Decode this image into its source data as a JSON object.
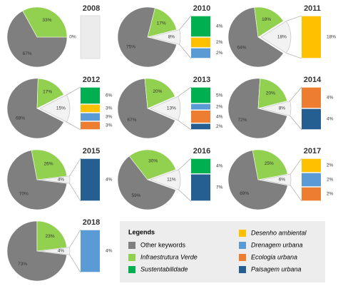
{
  "legend": {
    "title": "Legends",
    "items": [
      {
        "name": "Other keywords",
        "color": "#7f7f7f"
      },
      {
        "name": "Infraestrutura Verde",
        "color": "#92d050"
      },
      {
        "name": "Sustentabilidade",
        "color": "#00b050"
      },
      {
        "name": "Desenho ambiental",
        "color": "#ffc000"
      },
      {
        "name": "Drenagem urbana",
        "color": "#5b9bd5"
      },
      {
        "name": "Ecologia urbana",
        "color": "#ed7d31"
      },
      {
        "name": "Paisagem urbana",
        "color": "#255e91"
      }
    ]
  },
  "chart_data": [
    {
      "type": "pie-of-bar",
      "title": "2008",
      "pie": {
        "categories": [
          "Other keywords",
          "Infraestrutura Verde",
          null
        ],
        "values": [
          67,
          33,
          0
        ],
        "value_labels": [
          "67%",
          "33%",
          "0%"
        ]
      },
      "bar": {
        "categories": [],
        "values": [],
        "value_labels": []
      }
    },
    {
      "type": "pie-of-bar",
      "title": "2010",
      "pie": {
        "categories": [
          "Other keywords",
          "Infraestrutura Verde",
          null
        ],
        "values": [
          75,
          17,
          8
        ],
        "value_labels": [
          "75%",
          "17%",
          "8%"
        ]
      },
      "bar": {
        "categories": [
          "Sustentabilidade",
          "Desenho ambiental",
          "Drenagem urbana"
        ],
        "values": [
          4,
          2,
          2
        ],
        "value_labels": [
          "4%",
          "2%",
          "2%"
        ]
      }
    },
    {
      "type": "pie-of-bar",
      "title": "2011",
      "pie": {
        "categories": [
          "Other keywords",
          "Infraestrutura Verde",
          null
        ],
        "values": [
          64,
          18,
          18
        ],
        "value_labels": [
          "64%",
          "18%",
          "18%"
        ]
      },
      "bar": {
        "categories": [
          "Desenho ambiental"
        ],
        "values": [
          18
        ],
        "value_labels": [
          "18%"
        ]
      }
    },
    {
      "type": "pie-of-bar",
      "title": "2012",
      "pie": {
        "categories": [
          "Other keywords",
          "Infraestrutura Verde",
          null
        ],
        "values": [
          68,
          17,
          15
        ],
        "value_labels": [
          "68%",
          "17%",
          "15%"
        ]
      },
      "bar": {
        "categories": [
          "Sustentabilidade",
          "Desenho ambiental",
          "Drenagem urbana",
          "Ecologia urbana"
        ],
        "values": [
          6,
          3,
          3,
          3
        ],
        "value_labels": [
          "6%",
          "3%",
          "3%",
          "3%"
        ]
      }
    },
    {
      "type": "pie-of-bar",
      "title": "2013",
      "pie": {
        "categories": [
          "Other keywords",
          "Infraestrutura Verde",
          null
        ],
        "values": [
          67,
          20,
          13
        ],
        "value_labels": [
          "67%",
          "20%",
          "13%"
        ]
      },
      "bar": {
        "categories": [
          "Sustentabilidade",
          "Drenagem urbana",
          "Ecologia urbana",
          "Paisagem urbana"
        ],
        "values": [
          5,
          2,
          4,
          2
        ],
        "value_labels": [
          "5%",
          "2%",
          "4%",
          "2%"
        ]
      }
    },
    {
      "type": "pie-of-bar",
      "title": "2014",
      "pie": {
        "categories": [
          "Other keywords",
          "Infraestrutura Verde",
          null
        ],
        "values": [
          72,
          20,
          8
        ],
        "value_labels": [
          "72%",
          "20%",
          "8%"
        ]
      },
      "bar": {
        "categories": [
          "Ecologia urbana",
          "Paisagem urbana"
        ],
        "values": [
          4,
          4
        ],
        "value_labels": [
          "4%",
          "4%"
        ]
      }
    },
    {
      "type": "pie-of-bar",
      "title": "2015",
      "pie": {
        "categories": [
          "Other keywords",
          "Infraestrutura Verde",
          null
        ],
        "values": [
          70,
          26,
          4
        ],
        "value_labels": [
          "70%",
          "26%",
          "4%"
        ]
      },
      "bar": {
        "categories": [
          "Paisagem urbana"
        ],
        "values": [
          4
        ],
        "value_labels": [
          "4%"
        ]
      }
    },
    {
      "type": "pie-of-bar",
      "title": "2016",
      "pie": {
        "categories": [
          "Other keywords",
          "Infraestrutura Verde",
          null
        ],
        "values": [
          59,
          30,
          11
        ],
        "value_labels": [
          "59%",
          "30%",
          "11%"
        ]
      },
      "bar": {
        "categories": [
          "Sustentabilidade",
          "Paisagem urbana"
        ],
        "values": [
          4,
          7
        ],
        "value_labels": [
          "4%",
          "7%"
        ]
      }
    },
    {
      "type": "pie-of-bar",
      "title": "2017",
      "pie": {
        "categories": [
          "Other keywords",
          "Infraestrutura Verde",
          null
        ],
        "values": [
          69,
          25,
          6
        ],
        "value_labels": [
          "69%",
          "25%",
          "6%"
        ]
      },
      "bar": {
        "categories": [
          "Desenho ambiental",
          "Drenagem urbana",
          "Ecologia urbana"
        ],
        "values": [
          2,
          2,
          2
        ],
        "value_labels": [
          "2%",
          "2%",
          "2%"
        ]
      }
    },
    {
      "type": "pie-of-bar",
      "title": "2018",
      "pie": {
        "categories": [
          "Other keywords",
          "Infraestrutura Verde",
          null
        ],
        "values": [
          73,
          23,
          4
        ],
        "value_labels": [
          "73%",
          "23%",
          "4%"
        ]
      },
      "bar": {
        "categories": [
          "Drenagem urbana"
        ],
        "values": [
          4
        ],
        "value_labels": [
          "4%"
        ]
      }
    }
  ]
}
